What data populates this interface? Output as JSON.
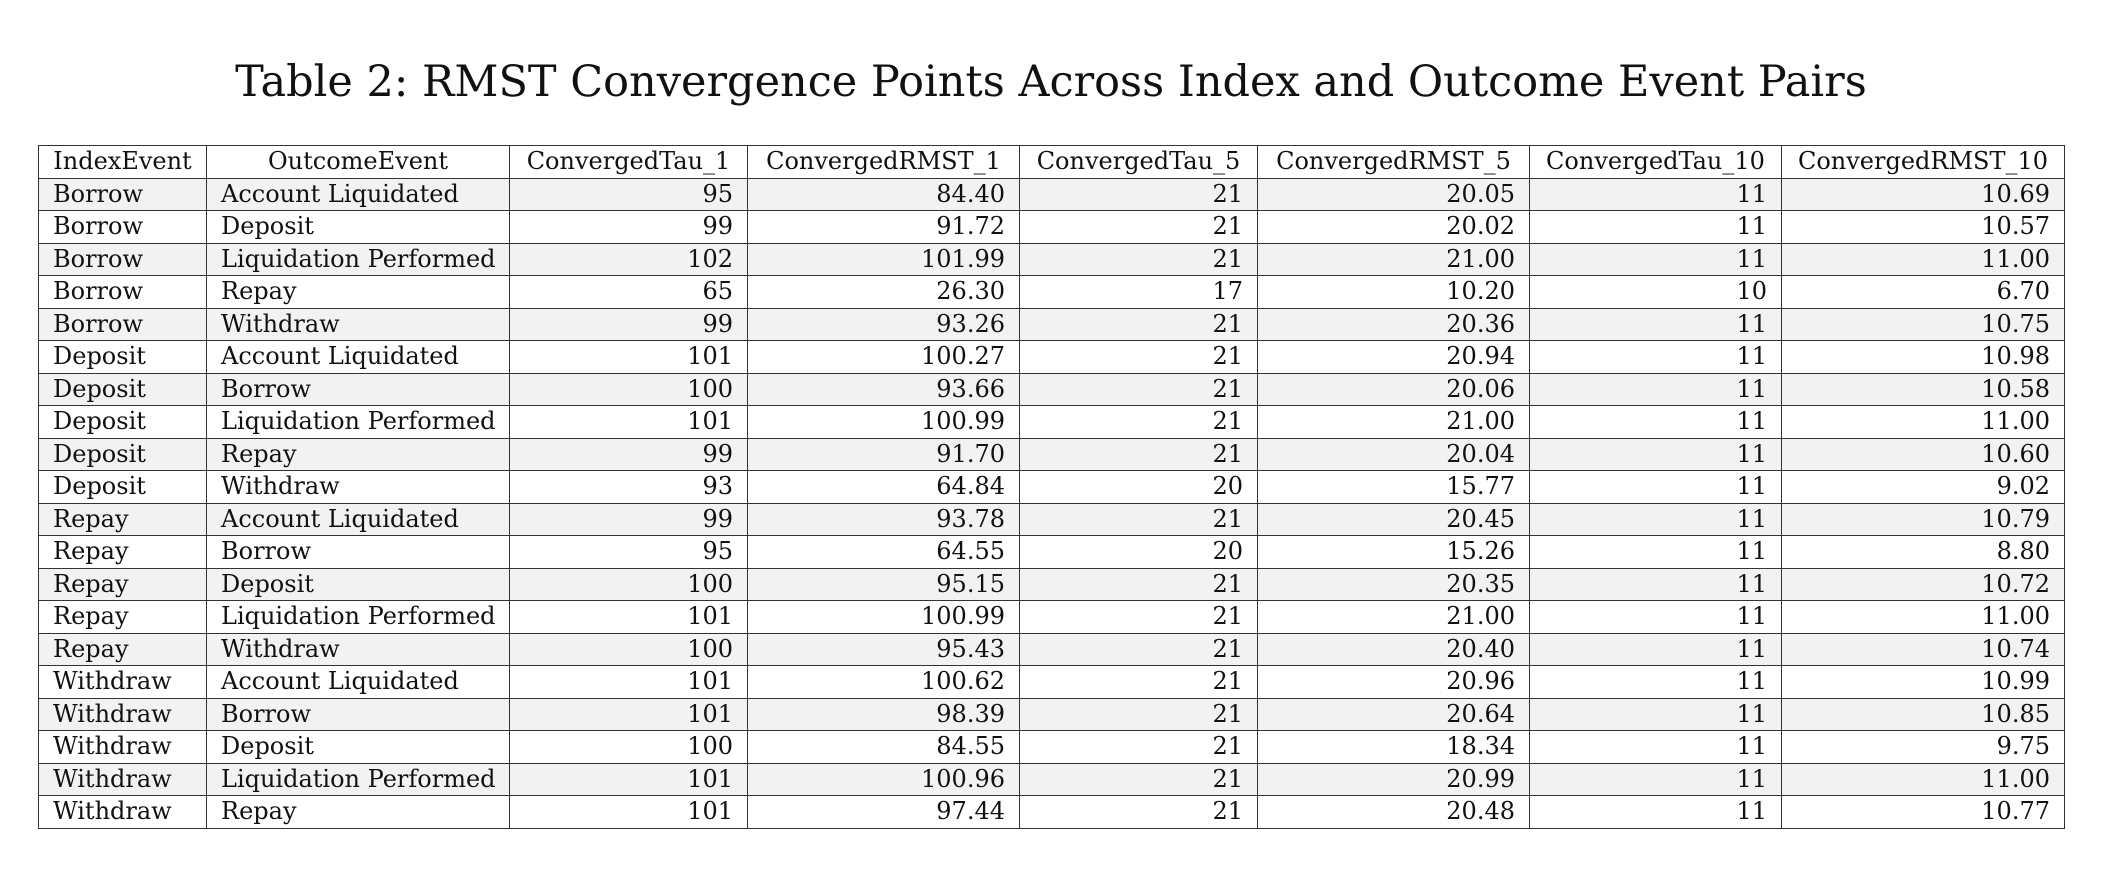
{
  "title": "Table 2: RMST Convergence Points Across Index and Outcome Event Pairs",
  "columns": [
    "IndexEvent",
    "OutcomeEvent",
    "ConvergedTau_1",
    "ConvergedRMST_1",
    "ConvergedTau_5",
    "ConvergedRMST_5",
    "ConvergedTau_10",
    "ConvergedRMST_10"
  ],
  "rows": [
    [
      "Borrow",
      "Account Liquidated",
      "95",
      "84.40",
      "21",
      "20.05",
      "11",
      "10.69"
    ],
    [
      "Borrow",
      "Deposit",
      "99",
      "91.72",
      "21",
      "20.02",
      "11",
      "10.57"
    ],
    [
      "Borrow",
      "Liquidation Performed",
      "102",
      "101.99",
      "21",
      "21.00",
      "11",
      "11.00"
    ],
    [
      "Borrow",
      "Repay",
      "65",
      "26.30",
      "17",
      "10.20",
      "10",
      "6.70"
    ],
    [
      "Borrow",
      "Withdraw",
      "99",
      "93.26",
      "21",
      "20.36",
      "11",
      "10.75"
    ],
    [
      "Deposit",
      "Account Liquidated",
      "101",
      "100.27",
      "21",
      "20.94",
      "11",
      "10.98"
    ],
    [
      "Deposit",
      "Borrow",
      "100",
      "93.66",
      "21",
      "20.06",
      "11",
      "10.58"
    ],
    [
      "Deposit",
      "Liquidation Performed",
      "101",
      "100.99",
      "21",
      "21.00",
      "11",
      "11.00"
    ],
    [
      "Deposit",
      "Repay",
      "99",
      "91.70",
      "21",
      "20.04",
      "11",
      "10.60"
    ],
    [
      "Deposit",
      "Withdraw",
      "93",
      "64.84",
      "20",
      "15.77",
      "11",
      "9.02"
    ],
    [
      "Repay",
      "Account Liquidated",
      "99",
      "93.78",
      "21",
      "20.45",
      "11",
      "10.79"
    ],
    [
      "Repay",
      "Borrow",
      "95",
      "64.55",
      "20",
      "15.26",
      "11",
      "8.80"
    ],
    [
      "Repay",
      "Deposit",
      "100",
      "95.15",
      "21",
      "20.35",
      "11",
      "10.72"
    ],
    [
      "Repay",
      "Liquidation Performed",
      "101",
      "100.99",
      "21",
      "21.00",
      "11",
      "11.00"
    ],
    [
      "Repay",
      "Withdraw",
      "100",
      "95.43",
      "21",
      "20.40",
      "11",
      "10.74"
    ],
    [
      "Withdraw",
      "Account Liquidated",
      "101",
      "100.62",
      "21",
      "20.96",
      "11",
      "10.99"
    ],
    [
      "Withdraw",
      "Borrow",
      "101",
      "98.39",
      "21",
      "20.64",
      "11",
      "10.85"
    ],
    [
      "Withdraw",
      "Deposit",
      "100",
      "84.55",
      "21",
      "18.34",
      "11",
      "9.75"
    ],
    [
      "Withdraw",
      "Liquidation Performed",
      "101",
      "100.96",
      "21",
      "20.99",
      "11",
      "11.00"
    ],
    [
      "Withdraw",
      "Repay",
      "101",
      "97.44",
      "21",
      "20.48",
      "11",
      "10.77"
    ]
  ],
  "colors": {
    "stripe": "#f2f2f2",
    "border": "#333333",
    "text": "#111111"
  }
}
